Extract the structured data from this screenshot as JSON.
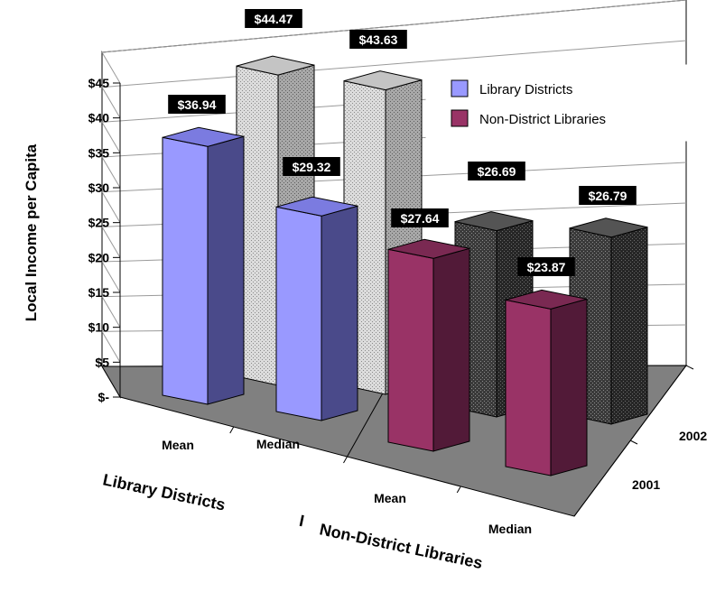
{
  "chart_data": {
    "type": "bar",
    "style": "3d-clustered-depth",
    "ylabel": "Local Income per Capita",
    "yticks": [
      "$-",
      "$5",
      "$10",
      "$15",
      "$20",
      "$25",
      "$30",
      "$35",
      "$40",
      "$45"
    ],
    "ylim": [
      0,
      45
    ],
    "categories": [
      "Mean",
      "Median",
      "Mean",
      "Median"
    ],
    "category_groups": [
      "Library Districts",
      "I",
      "Non-District Libraries"
    ],
    "depth_labels": [
      "2001",
      "2002"
    ],
    "series": [
      {
        "name": "2002",
        "values": [
          44.47,
          43.63,
          26.69,
          26.79
        ],
        "labels": [
          "$44.47",
          "$43.63",
          "$26.69",
          "$26.79"
        ]
      },
      {
        "name": "2001",
        "values": [
          36.94,
          29.32,
          27.64,
          23.87
        ],
        "labels": [
          "$36.94",
          "$29.32",
          "$27.64",
          "$23.87"
        ]
      }
    ],
    "legend": {
      "position": "top-right",
      "entries": [
        {
          "label": "Library Districts",
          "color": "#9999ff"
        },
        {
          "label": "Non-District Libraries",
          "color": "#993366"
        }
      ]
    },
    "colors": {
      "library_districts": "#9999ff",
      "non_district": "#993366",
      "back_row_light": "#cfcfcf",
      "back_row_dark": "#3c3c3c",
      "floor": "#808080",
      "walls": "#ffffff",
      "grid": "#9a9a9a"
    },
    "grid": true
  }
}
